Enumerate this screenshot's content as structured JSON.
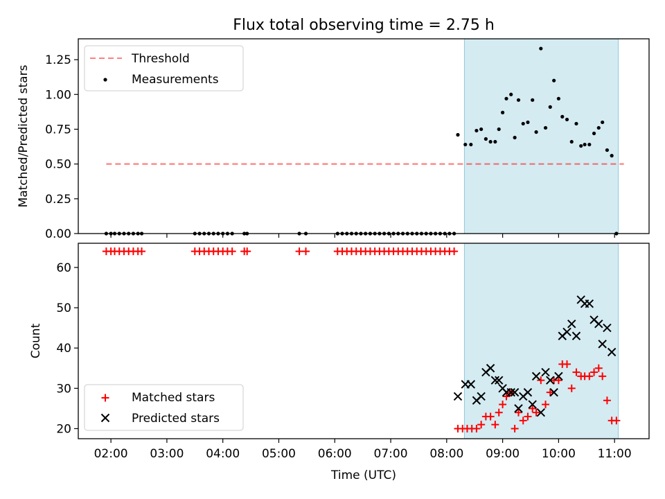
{
  "title": "Flux total observing time = 2.75 h",
  "colors": {
    "highlight": "#add8e6",
    "threshold": "#ff0000",
    "measurements": "#000000",
    "matched": "#ff0000",
    "predicted": "#000000"
  },
  "chart_data": [
    {
      "type": "scatter",
      "ylabel": "Matched/Predicted stars",
      "xlabel": "",
      "xlim": [
        "01:25",
        "11:37"
      ],
      "ylim": [
        0,
        1.4
      ],
      "yticks": [
        0.0,
        0.25,
        0.5,
        0.75,
        1.0,
        1.25
      ],
      "ytick_labels": [
        "0.00",
        "0.25",
        "0.50",
        "0.75",
        "1.00",
        "1.25"
      ],
      "highlight_span": [
        "08:19",
        "11:04"
      ],
      "legend": {
        "placement": "upper-left",
        "entries": [
          "Threshold",
          "Measurements"
        ]
      },
      "series": [
        {
          "name": "Threshold",
          "kind": "line",
          "style": "dashed",
          "x": [
            "01:55",
            "11:10"
          ],
          "y": [
            0.5,
            0.5
          ]
        },
        {
          "name": "Measurements",
          "kind": "scatter",
          "points": [
            [
              "01:55",
              0
            ],
            [
              "02:00",
              0
            ],
            [
              "02:04",
              0
            ],
            [
              "02:09",
              0
            ],
            [
              "02:14",
              0
            ],
            [
              "02:19",
              0
            ],
            [
              "02:24",
              0
            ],
            [
              "02:29",
              0
            ],
            [
              "02:33",
              0
            ],
            [
              "03:30",
              0
            ],
            [
              "03:35",
              0
            ],
            [
              "03:40",
              0
            ],
            [
              "03:45",
              0
            ],
            [
              "03:50",
              0
            ],
            [
              "03:55",
              0
            ],
            [
              "04:00",
              0
            ],
            [
              "04:05",
              0
            ],
            [
              "04:10",
              0
            ],
            [
              "04:23",
              0
            ],
            [
              "04:26",
              0
            ],
            [
              "05:22",
              0
            ],
            [
              "05:29",
              0
            ],
            [
              "06:03",
              0
            ],
            [
              "06:08",
              0
            ],
            [
              "06:13",
              0
            ],
            [
              "06:18",
              0
            ],
            [
              "06:23",
              0
            ],
            [
              "06:28",
              0
            ],
            [
              "06:33",
              0
            ],
            [
              "06:38",
              0
            ],
            [
              "06:43",
              0
            ],
            [
              "06:48",
              0
            ],
            [
              "06:53",
              0
            ],
            [
              "06:58",
              0
            ],
            [
              "07:03",
              0
            ],
            [
              "07:08",
              0
            ],
            [
              "07:13",
              0
            ],
            [
              "07:18",
              0
            ],
            [
              "07:23",
              0
            ],
            [
              "07:28",
              0
            ],
            [
              "07:33",
              0
            ],
            [
              "07:38",
              0
            ],
            [
              "07:43",
              0
            ],
            [
              "07:48",
              0
            ],
            [
              "07:53",
              0
            ],
            [
              "07:58",
              0
            ],
            [
              "08:03",
              0
            ],
            [
              "08:08",
              0
            ],
            [
              "08:12",
              0.71
            ],
            [
              "08:20",
              0.64
            ],
            [
              "08:26",
              0.64
            ],
            [
              "08:32",
              0.74
            ],
            [
              "08:37",
              0.75
            ],
            [
              "08:42",
              0.68
            ],
            [
              "08:47",
              0.66
            ],
            [
              "08:52",
              0.66
            ],
            [
              "08:56",
              0.75
            ],
            [
              "09:00",
              0.87
            ],
            [
              "09:04",
              0.97
            ],
            [
              "09:09",
              1.0
            ],
            [
              "09:13",
              0.69
            ],
            [
              "09:17",
              0.96
            ],
            [
              "09:22",
              0.79
            ],
            [
              "09:27",
              0.8
            ],
            [
              "09:32",
              0.96
            ],
            [
              "09:36",
              0.73
            ],
            [
              "09:41",
              1.33
            ],
            [
              "09:46",
              0.76
            ],
            [
              "09:51",
              0.91
            ],
            [
              "09:55",
              1.1
            ],
            [
              "10:00",
              0.97
            ],
            [
              "10:04",
              0.84
            ],
            [
              "10:09",
              0.82
            ],
            [
              "10:14",
              0.66
            ],
            [
              "10:19",
              0.79
            ],
            [
              "10:24",
              0.63
            ],
            [
              "10:28",
              0.64
            ],
            [
              "10:33",
              0.64
            ],
            [
              "10:38",
              0.72
            ],
            [
              "10:43",
              0.76
            ],
            [
              "10:47",
              0.8
            ],
            [
              "10:52",
              0.6
            ],
            [
              "10:57",
              0.56
            ],
            [
              "11:02",
              0.0
            ]
          ]
        }
      ]
    },
    {
      "type": "scatter",
      "ylabel": "Count",
      "xlabel": "Time (UTC)",
      "xlim": [
        "01:25",
        "11:37"
      ],
      "ylim": [
        17.5,
        66
      ],
      "yticks": [
        20,
        30,
        40,
        50,
        60
      ],
      "ytick_labels": [
        "20",
        "30",
        "40",
        "50",
        "60"
      ],
      "xticks": [
        "02:00",
        "03:00",
        "04:00",
        "05:00",
        "06:00",
        "07:00",
        "08:00",
        "09:00",
        "10:00",
        "11:00"
      ],
      "xtick_labels": [
        "02:00",
        "03:00",
        "04:00",
        "05:00",
        "06:00",
        "07:00",
        "08:00",
        "09:00",
        "10:00",
        "11:00"
      ],
      "highlight_span": [
        "08:19",
        "11:04"
      ],
      "legend": {
        "placement": "lower-left",
        "entries": [
          "Matched stars",
          "Predicted stars"
        ]
      },
      "series": [
        {
          "name": "Matched stars",
          "kind": "scatter",
          "marker": "plus",
          "points": [
            [
              "01:55",
              64
            ],
            [
              "02:00",
              64
            ],
            [
              "02:04",
              64
            ],
            [
              "02:09",
              64
            ],
            [
              "02:14",
              64
            ],
            [
              "02:19",
              64
            ],
            [
              "02:24",
              64
            ],
            [
              "02:29",
              64
            ],
            [
              "02:33",
              64
            ],
            [
              "03:30",
              64
            ],
            [
              "03:35",
              64
            ],
            [
              "03:40",
              64
            ],
            [
              "03:45",
              64
            ],
            [
              "03:50",
              64
            ],
            [
              "03:55",
              64
            ],
            [
              "04:00",
              64
            ],
            [
              "04:05",
              64
            ],
            [
              "04:10",
              64
            ],
            [
              "04:23",
              64
            ],
            [
              "04:26",
              64
            ],
            [
              "05:22",
              64
            ],
            [
              "05:29",
              64
            ],
            [
              "06:03",
              64
            ],
            [
              "06:08",
              64
            ],
            [
              "06:13",
              64
            ],
            [
              "06:18",
              64
            ],
            [
              "06:23",
              64
            ],
            [
              "06:28",
              64
            ],
            [
              "06:33",
              64
            ],
            [
              "06:38",
              64
            ],
            [
              "06:43",
              64
            ],
            [
              "06:48",
              64
            ],
            [
              "06:53",
              64
            ],
            [
              "06:58",
              64
            ],
            [
              "07:03",
              64
            ],
            [
              "07:08",
              64
            ],
            [
              "07:13",
              64
            ],
            [
              "07:18",
              64
            ],
            [
              "07:23",
              64
            ],
            [
              "07:28",
              64
            ],
            [
              "07:33",
              64
            ],
            [
              "07:38",
              64
            ],
            [
              "07:43",
              64
            ],
            [
              "07:48",
              64
            ],
            [
              "07:53",
              64
            ],
            [
              "07:58",
              64
            ],
            [
              "08:03",
              64
            ],
            [
              "08:08",
              64
            ],
            [
              "08:12",
              20
            ],
            [
              "08:17",
              20
            ],
            [
              "08:22",
              20
            ],
            [
              "08:27",
              20
            ],
            [
              "08:32",
              20
            ],
            [
              "08:37",
              21
            ],
            [
              "08:42",
              23
            ],
            [
              "08:47",
              23
            ],
            [
              "08:52",
              21
            ],
            [
              "08:56",
              24
            ],
            [
              "09:00",
              26
            ],
            [
              "09:04",
              28
            ],
            [
              "09:09",
              29
            ],
            [
              "09:13",
              20
            ],
            [
              "09:17",
              24
            ],
            [
              "09:22",
              22
            ],
            [
              "09:27",
              23
            ],
            [
              "09:32",
              25
            ],
            [
              "09:36",
              24
            ],
            [
              "09:41",
              32
            ],
            [
              "09:46",
              26
            ],
            [
              "09:51",
              29
            ],
            [
              "09:55",
              32
            ],
            [
              "10:00",
              32
            ],
            [
              "10:04",
              36
            ],
            [
              "10:09",
              36
            ],
            [
              "10:14",
              30
            ],
            [
              "10:19",
              34
            ],
            [
              "10:24",
              33
            ],
            [
              "10:28",
              33
            ],
            [
              "10:33",
              33
            ],
            [
              "10:38",
              34
            ],
            [
              "10:43",
              35
            ],
            [
              "10:47",
              33
            ],
            [
              "10:52",
              27
            ],
            [
              "10:57",
              22
            ],
            [
              "11:02",
              22
            ]
          ]
        },
        {
          "name": "Predicted stars",
          "kind": "scatter",
          "marker": "x",
          "points": [
            [
              "08:12",
              28
            ],
            [
              "08:20",
              31
            ],
            [
              "08:26",
              31
            ],
            [
              "08:32",
              27
            ],
            [
              "08:37",
              28
            ],
            [
              "08:42",
              34
            ],
            [
              "08:47",
              35
            ],
            [
              "08:52",
              32
            ],
            [
              "08:56",
              32
            ],
            [
              "09:00",
              30
            ],
            [
              "09:04",
              29
            ],
            [
              "09:09",
              29
            ],
            [
              "09:13",
              29
            ],
            [
              "09:17",
              25
            ],
            [
              "09:22",
              28
            ],
            [
              "09:27",
              29
            ],
            [
              "09:32",
              26
            ],
            [
              "09:36",
              33
            ],
            [
              "09:41",
              24
            ],
            [
              "09:46",
              34
            ],
            [
              "09:51",
              32
            ],
            [
              "09:55",
              29
            ],
            [
              "10:00",
              33
            ],
            [
              "10:04",
              43
            ],
            [
              "10:09",
              44
            ],
            [
              "10:14",
              46
            ],
            [
              "10:19",
              43
            ],
            [
              "10:24",
              52
            ],
            [
              "10:28",
              51
            ],
            [
              "10:33",
              51
            ],
            [
              "10:38",
              47
            ],
            [
              "10:43",
              46
            ],
            [
              "10:47",
              41
            ],
            [
              "10:52",
              45
            ],
            [
              "10:57",
              39
            ]
          ]
        }
      ]
    }
  ]
}
